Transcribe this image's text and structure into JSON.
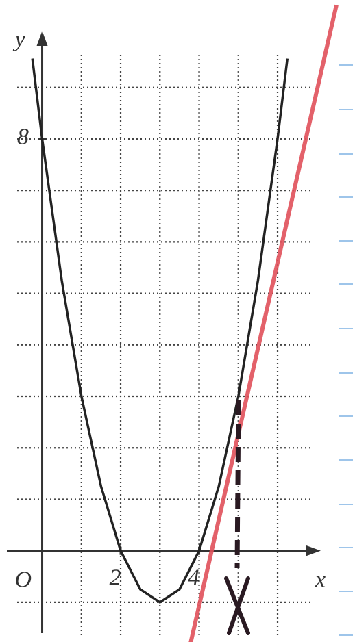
{
  "chart_data": {
    "type": "line",
    "x_label": "x",
    "y_label": "y",
    "origin_label": "O",
    "xlim": [
      -0.9,
      7.1
    ],
    "ylim": [
      -1.6,
      10.1
    ],
    "xticks": [
      2,
      4
    ],
    "yticks": [
      8
    ],
    "xgrid": [
      1,
      2,
      3,
      4,
      5,
      6
    ],
    "ygrid": [
      -1,
      1,
      2,
      3,
      4,
      5,
      6,
      7,
      8,
      9
    ],
    "grid": true,
    "series": [
      {
        "color": "#222222",
        "x": [
          -0.25,
          0,
          0.5,
          1,
          1.5,
          2,
          2.5,
          3,
          3.5,
          4,
          4.5,
          5,
          5.5,
          6,
          6.25
        ],
        "values": [
          9.56,
          8,
          5.25,
          3,
          1.25,
          0,
          -0.75,
          -1,
          -0.75,
          0,
          1.25,
          3,
          5.25,
          8,
          9.56
        ]
      },
      {
        "color": "#e0505a",
        "x": [
          3.75,
          7.5
        ],
        "values": [
          -1.9,
          10.6
        ]
      }
    ]
  }
}
